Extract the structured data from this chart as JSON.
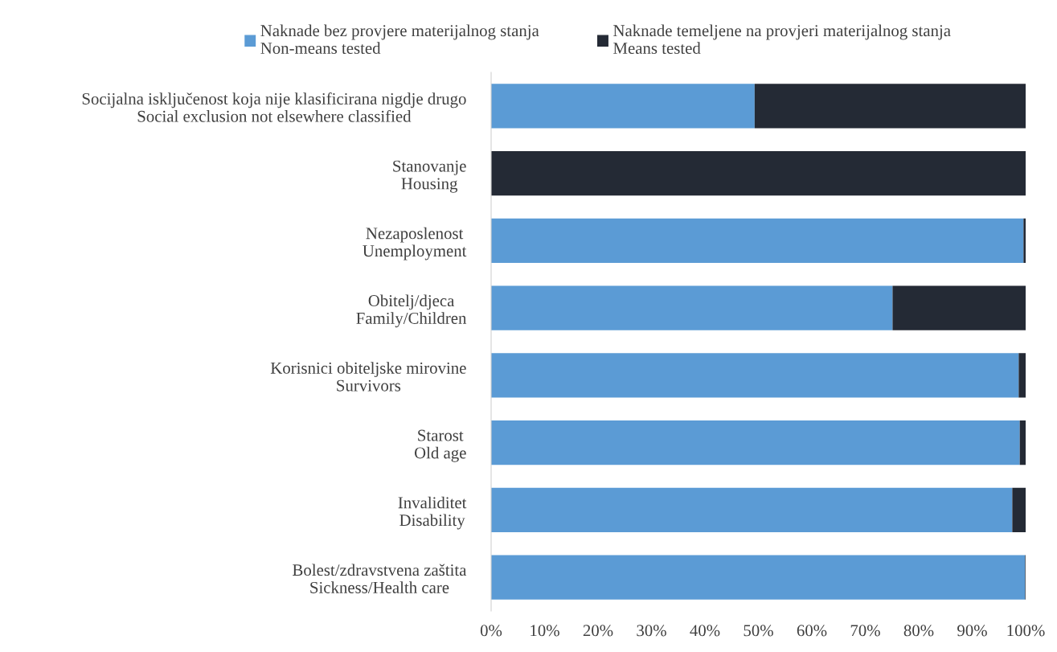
{
  "chart_data": {
    "type": "bar",
    "orientation": "horizontal",
    "stacked": true,
    "legend": "top",
    "grid": false,
    "categories": [
      "Socijalna isključenost koja nije klasificirana nigdje drugo\nSocial exclusion not elsewhere classified",
      "Stanovanje\nHousing",
      "Nezaposlenost\nUnemployment",
      "Obitelj/djeca\nFamily/Children",
      "Korisnici obiteljske mirovine\nSurvivors",
      "Starost\nOld age",
      "Invaliditet\nDisability",
      "Bolest/zdravstvena zaštita\nSickness/Health care"
    ],
    "series": [
      {
        "name": "Naknade bez provjere materijalnog stanja\nNon-means tested",
        "color": "#5b9bd5",
        "values": [
          49.3,
          0,
          99.6,
          75.1,
          98.7,
          98.9,
          97.5,
          99.9
        ]
      },
      {
        "name": "Naknade temeljene na provjeri materijalnog stanja\nMeans tested",
        "color": "#242a35",
        "values": [
          50.7,
          100,
          0.4,
          24.9,
          1.3,
          1.1,
          2.5,
          0.1
        ]
      }
    ],
    "xlim": [
      0,
      100
    ],
    "xticks": [
      {
        "value": 0,
        "label": "0%"
      },
      {
        "value": 10,
        "label": "10%"
      },
      {
        "value": 20,
        "label": "20%"
      },
      {
        "value": 30,
        "label": "30%"
      },
      {
        "value": 40,
        "label": "40%"
      },
      {
        "value": 50,
        "label": "50%"
      },
      {
        "value": 60,
        "label": "60%"
      },
      {
        "value": 70,
        "label": "70%"
      },
      {
        "value": 80,
        "label": "80%"
      },
      {
        "value": 90,
        "label": "90%"
      },
      {
        "value": 100,
        "label": "100%"
      }
    ]
  }
}
